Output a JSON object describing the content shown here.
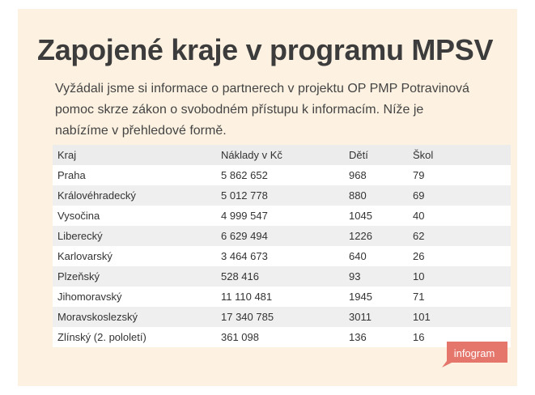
{
  "title": "Zapojené kraje v programu MPSV",
  "intro": "Vyžádali jsme si informace o partnerech v projektu OP PMP Potravinová pomoc skrze zákon o svobodném přístupu k informacím. Níže je nabízíme v přehledové formě.",
  "brand": "infogram",
  "colors": {
    "background": "#fdf2e1",
    "header_row": "#ececec",
    "stripe_row": "#efefef",
    "brand_tag": "#e4766b"
  },
  "chart_data": {
    "type": "table",
    "columns": [
      "Kraj",
      "Náklady v Kč",
      "Dětí",
      "Škol"
    ],
    "rows": [
      [
        "Praha",
        "5 862 652",
        "968",
        "79"
      ],
      [
        "Královéhradecký",
        "5 012 778",
        "880",
        "69"
      ],
      [
        "Vysočina",
        "4 999 547",
        "1045",
        "40"
      ],
      [
        "Liberecký",
        "6 629 494",
        "1226",
        "62"
      ],
      [
        "Karlovarský",
        "3 464 673",
        "640",
        "26"
      ],
      [
        "Plzeňský",
        "528 416",
        "93",
        "10"
      ],
      [
        "Jihomoravský",
        "11 110 481",
        "1945",
        "71"
      ],
      [
        "Moravskoslezský",
        "17 340 785",
        "3011",
        "101"
      ],
      [
        "Zlínský (2. pololetí)",
        "361 098",
        "136",
        "16"
      ]
    ]
  }
}
